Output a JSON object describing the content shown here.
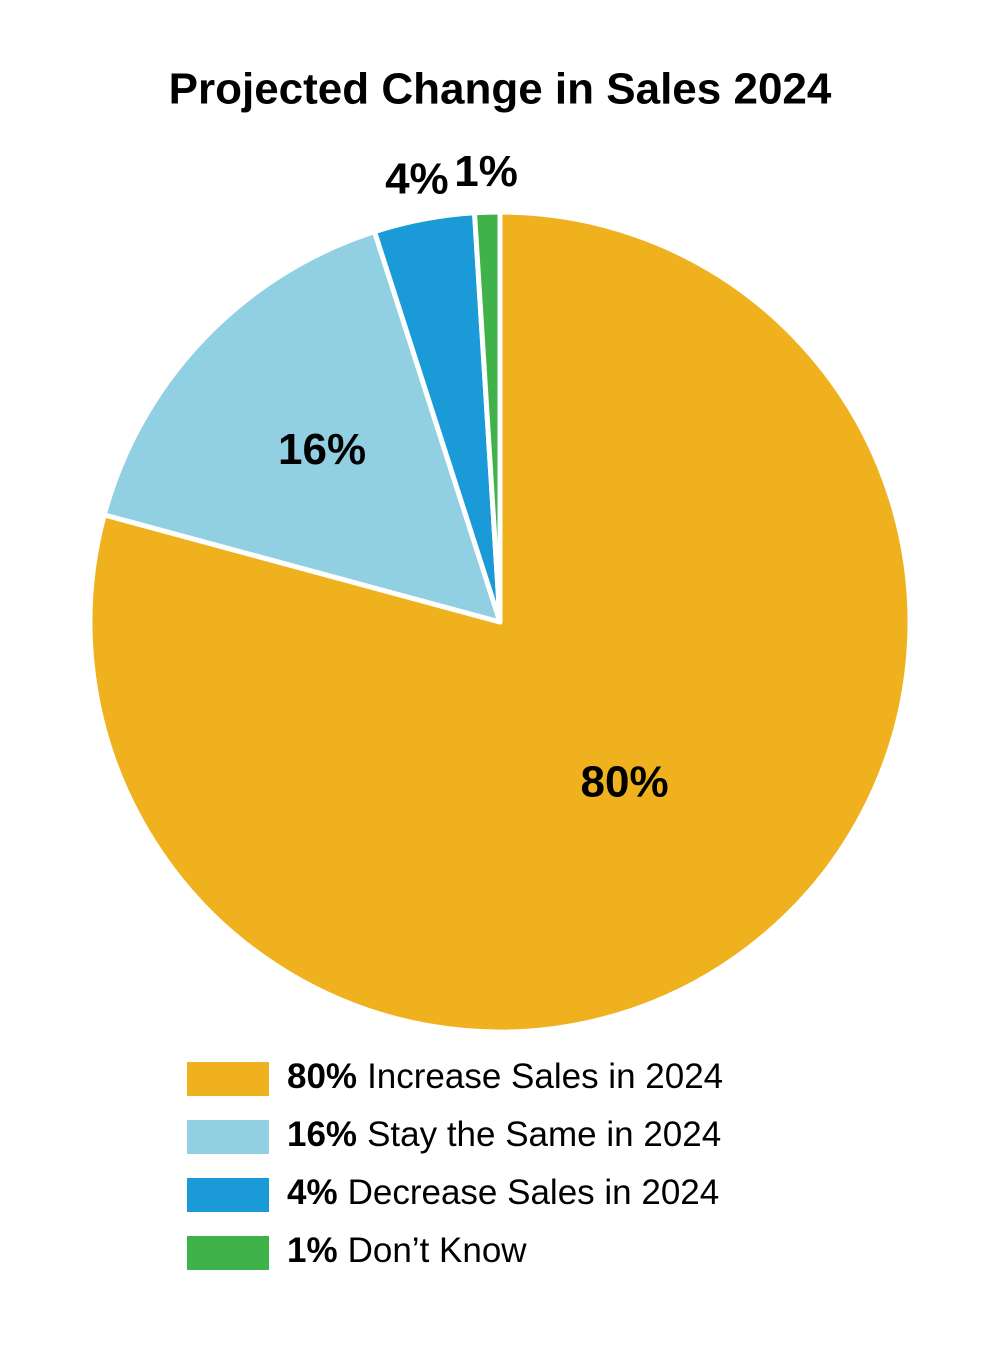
{
  "chart_data": {
    "type": "pie",
    "title": "Projected Change in Sales 2024",
    "categories": [
      "Increase Sales in 2024",
      "Stay the Same in 2024",
      "Decrease Sales in 2024",
      "Don’t Know"
    ],
    "values": [
      80,
      16,
      4,
      1
    ],
    "value_labels": [
      "80%",
      "16%",
      "4%",
      "1%"
    ],
    "colors": [
      "#efb11e",
      "#90d0e2",
      "#1a9ad6",
      "#3fb24a"
    ],
    "legend": "bottom"
  }
}
